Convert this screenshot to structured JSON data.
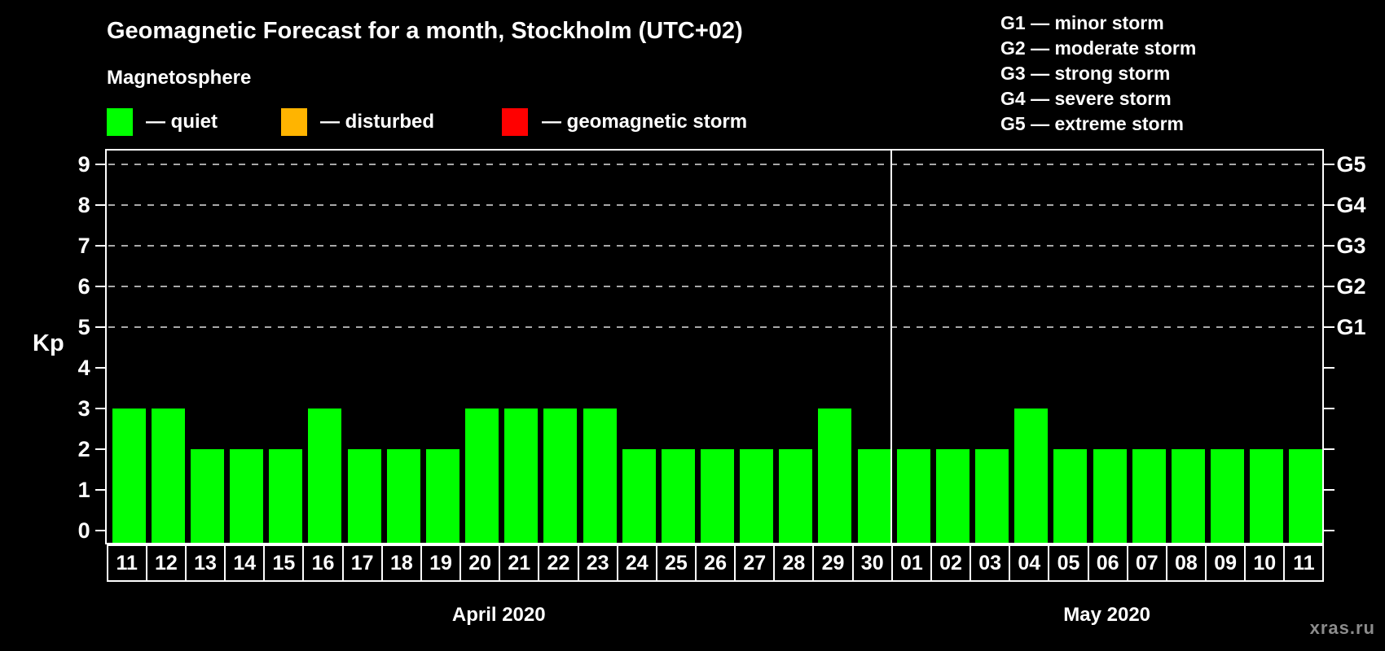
{
  "title": "Geomagnetic Forecast for a month, Stockholm (UTC+02)",
  "subtitle": "Magnetosphere",
  "legend": {
    "items": [
      {
        "name": "quiet",
        "label": "— quiet",
        "color": "#00ff00"
      },
      {
        "name": "disturbed",
        "label": "— disturbed",
        "color": "#ffb400"
      },
      {
        "name": "geomagnetic-storm",
        "label": "— geomagnetic storm",
        "color": "#ff0000"
      }
    ]
  },
  "g_scale_legend": [
    "G1 — minor storm",
    "G2 — moderate storm",
    "G3 — strong storm",
    "G4 — severe storm",
    "G5 — extreme storm"
  ],
  "watermark": "xras.ru",
  "chart_data": {
    "type": "bar",
    "title": "Geomagnetic Forecast for a month, Stockholm (UTC+02)",
    "ylabel": "Kp",
    "ylim": [
      0,
      9
    ],
    "yticks": [
      0,
      1,
      2,
      3,
      4,
      5,
      6,
      7,
      8,
      9
    ],
    "gridlines_at": [
      5,
      6,
      7,
      8,
      9
    ],
    "grid_color": "#a8a8a8",
    "bar_color": "#00ff00",
    "right_axis_labels": [
      {
        "value": 5,
        "label": "G1"
      },
      {
        "value": 6,
        "label": "G2"
      },
      {
        "value": 7,
        "label": "G3"
      },
      {
        "value": 8,
        "label": "G4"
      },
      {
        "value": 9,
        "label": "G5"
      }
    ],
    "months": [
      {
        "label": "April 2020",
        "categories": [
          "11",
          "12",
          "13",
          "14",
          "15",
          "16",
          "17",
          "18",
          "19",
          "20",
          "21",
          "22",
          "23",
          "24",
          "25",
          "26",
          "27",
          "28",
          "29",
          "30"
        ],
        "values": [
          3,
          3,
          2,
          2,
          2,
          3,
          2,
          2,
          2,
          3,
          3,
          3,
          3,
          2,
          2,
          2,
          2,
          2,
          3,
          2
        ]
      },
      {
        "label": "May 2020",
        "categories": [
          "01",
          "02",
          "03",
          "04",
          "05",
          "06",
          "07",
          "08",
          "09",
          "10",
          "11"
        ],
        "values": [
          2,
          2,
          2,
          3,
          2,
          2,
          2,
          2,
          2,
          2,
          2
        ]
      }
    ]
  }
}
